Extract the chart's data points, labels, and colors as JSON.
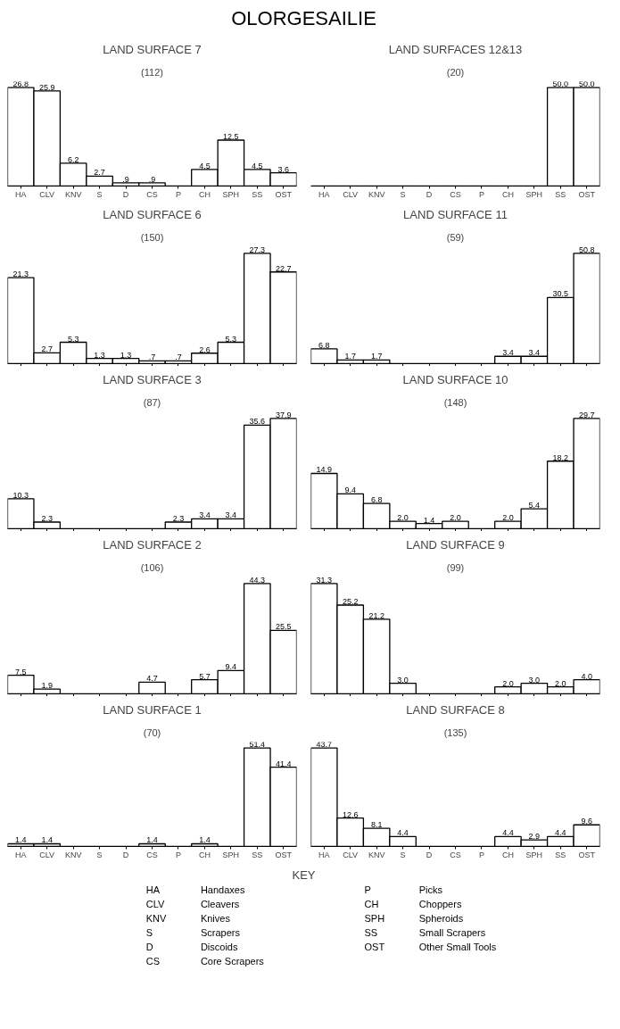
{
  "chart_data": [
    {
      "type": "other",
      "title": "OLORGESAILIE"
    },
    {
      "type": "bar",
      "title": "LAND SURFACE 7",
      "subtitle": "(112)",
      "categories": [
        "HA",
        "CLV",
        "KNV",
        "S",
        "D",
        "CS",
        "P",
        "CH",
        "SPH",
        "SS",
        "OST"
      ],
      "values": [
        26.8,
        25.9,
        6.2,
        2.7,
        0.9,
        0.9,
        0,
        4.5,
        12.5,
        4.5,
        3.6
      ],
      "value_labels": [
        "26.8",
        "25.9",
        "6.2",
        "2.7",
        ".9",
        ".9",
        null,
        "4.5",
        "12.5",
        "4.5",
        "3.6"
      ],
      "color": "#000000",
      "tick_labels": "x"
    },
    {
      "type": "bar",
      "title": "LAND SURFACES 12&13",
      "subtitle": "(20)",
      "categories": [
        "HA",
        "CLV",
        "KNV",
        "S",
        "D",
        "CS",
        "P",
        "CH",
        "SPH",
        "SS",
        "OST"
      ],
      "values": [
        0,
        0,
        0,
        0,
        0,
        0,
        0,
        0,
        0,
        50.0,
        50.0
      ],
      "value_labels": [
        null,
        null,
        null,
        null,
        null,
        null,
        null,
        null,
        null,
        "50.0",
        "50.0"
      ],
      "color": "#000000",
      "tick_labels": "x"
    },
    {
      "type": "bar",
      "title": "LAND SURFACE 6",
      "subtitle": "(150)",
      "categories": [
        null,
        null,
        null,
        null,
        null,
        null,
        null,
        null,
        null,
        null,
        null
      ],
      "values": [
        21.3,
        2.7,
        5.3,
        1.3,
        1.3,
        0.7,
        0.7,
        2.6,
        5.3,
        27.3,
        22.7
      ],
      "value_labels": [
        "21.3",
        "2.7",
        "5.3",
        "1.3",
        "1.3",
        ".7",
        ".7",
        "2.6",
        "5.3",
        "27.3",
        "22.7"
      ],
      "color": "#000000",
      "tick_labels": false
    },
    {
      "type": "bar",
      "title": "LAND SURFACE 11",
      "subtitle": "(59)",
      "categories": [
        null,
        null,
        null,
        null,
        null,
        null,
        null,
        null,
        null,
        null,
        null
      ],
      "values": [
        6.8,
        1.7,
        1.7,
        0,
        0,
        0,
        0,
        3.4,
        3.4,
        30.5,
        50.8
      ],
      "value_labels": [
        "6.8",
        "1.7",
        "1.7",
        null,
        null,
        null,
        null,
        "3.4",
        "3.4",
        "30.5",
        "50.8"
      ],
      "color": "#000000",
      "tick_labels": false
    },
    {
      "type": "bar",
      "title": "LAND SURFACE 3",
      "subtitle": "(87)",
      "categories": [
        null,
        null,
        null,
        null,
        null,
        null,
        null,
        null,
        null,
        null,
        null
      ],
      "values": [
        10.3,
        2.3,
        0,
        0,
        0,
        0,
        2.3,
        3.4,
        3.4,
        35.6,
        37.9
      ],
      "value_labels": [
        "10.3",
        "2.3",
        null,
        null,
        null,
        null,
        "2.3",
        "3.4",
        "3.4",
        "35.6",
        "37.9"
      ],
      "color": "#000000",
      "tick_labels": false
    },
    {
      "type": "bar",
      "title": "LAND SURFACE 10",
      "subtitle": "(148)",
      "categories": [
        null,
        null,
        null,
        null,
        null,
        null,
        null,
        null,
        null,
        null,
        null
      ],
      "values": [
        14.9,
        9.4,
        6.8,
        2.0,
        1.4,
        2.0,
        0,
        2.0,
        5.4,
        18.2,
        29.7
      ],
      "value_labels": [
        "14.9",
        "9.4",
        "6.8",
        "2.0",
        "1.4",
        "2.0",
        null,
        "2.0",
        "5.4",
        "18.2",
        "29.7"
      ],
      "color": "#000000",
      "tick_labels": false
    },
    {
      "type": "bar",
      "title": "LAND SURFACE 2",
      "subtitle": "(106)",
      "categories": [
        null,
        null,
        null,
        null,
        null,
        null,
        null,
        null,
        null,
        null,
        null
      ],
      "values": [
        7.5,
        1.9,
        0,
        0,
        0,
        4.7,
        0,
        5.7,
        9.4,
        44.3,
        25.5
      ],
      "value_labels": [
        "7.5",
        "1.9",
        null,
        null,
        null,
        "4.7",
        null,
        "5.7",
        "9.4",
        "44.3",
        "25.5"
      ],
      "color": "#000000",
      "tick_labels": false
    },
    {
      "type": "bar",
      "title": "LAND SURFACE 9",
      "subtitle": "(99)",
      "categories": [
        null,
        null,
        null,
        null,
        null,
        null,
        null,
        null,
        null,
        null,
        null
      ],
      "values": [
        31.3,
        25.2,
        21.2,
        3.0,
        0,
        0,
        0,
        2.0,
        3.0,
        2.0,
        4.0
      ],
      "value_labels": [
        "31.3",
        "25.2",
        "21.2",
        "3.0",
        null,
        null,
        null,
        "2.0",
        "3.0",
        "2.0",
        "4.0"
      ],
      "color": "#000000",
      "tick_labels": false
    },
    {
      "type": "bar",
      "title": "LAND SURFACE 1",
      "subtitle": "(70)",
      "categories": [
        "HA",
        "CLV",
        "KNV",
        "S",
        "D",
        "CS",
        "P",
        "CH",
        "SPH",
        "SS",
        "OST"
      ],
      "values": [
        1.4,
        1.4,
        0,
        0,
        0,
        1.4,
        0,
        1.4,
        0,
        51.4,
        41.4
      ],
      "value_labels": [
        "1.4",
        "1.4",
        null,
        null,
        null,
        "1.4",
        null,
        "1.4",
        null,
        "51.4",
        "41.4"
      ],
      "color": "#000000",
      "tick_labels": "x"
    },
    {
      "type": "bar",
      "title": "LAND SURFACE 8",
      "subtitle": "(135)",
      "categories": [
        "HA",
        "CLV",
        "KNV",
        "S",
        "D",
        "CS",
        "P",
        "CH",
        "SPH",
        "SS",
        "OST"
      ],
      "values": [
        43.7,
        12.6,
        8.1,
        4.4,
        0,
        0,
        0,
        4.4,
        2.9,
        4.4,
        9.6
      ],
      "value_labels": [
        "43.7",
        "12.6",
        "8.1",
        "4.4",
        null,
        null,
        null,
        "4.4",
        "2.9",
        "4.4",
        "9.6"
      ],
      "color": "#000000",
      "tick_labels": "x"
    },
    {
      "type": "other",
      "title": "KEY",
      "annotations": [
        "HA Handaxes",
        "CLV Cleavers",
        "KNV Knives",
        "S Scrapers",
        "D Discoids",
        "CS Core Scrapers",
        "P Picks",
        "CH Choppers",
        "SPH Spheroids",
        "SS Small Scrapers",
        "OST Other Small Tools"
      ]
    }
  ]
}
